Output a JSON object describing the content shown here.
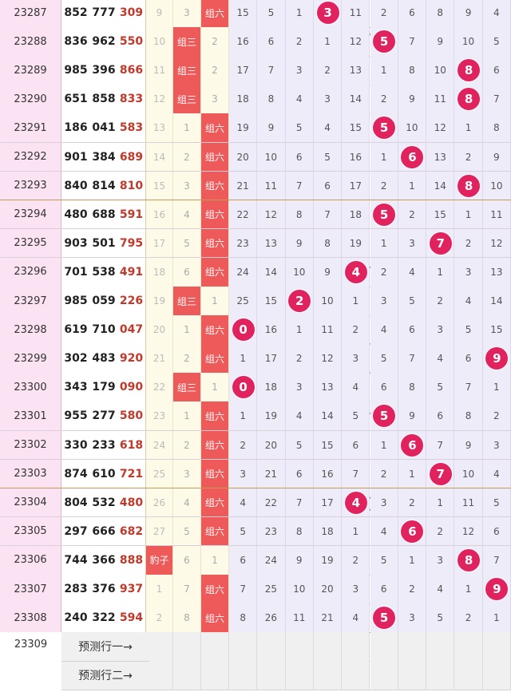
{
  "chart_data": {
    "type": "table",
    "columns": [
      "period",
      "draw_digits_1",
      "draw_digits_2",
      "sum_code",
      "group_baozi_omit",
      "group_zu3",
      "group_zu6",
      "d0",
      "d1",
      "d2",
      "d3",
      "d4",
      "d5",
      "d6",
      "d7",
      "d8",
      "d9"
    ],
    "rows": [
      {
        "period": "23287",
        "a": "852",
        "b": "777",
        "c": "309",
        "g1": "9",
        "g2": "3",
        "g3": "组六",
        "g3hl": true,
        "g2hl": false,
        "g1hl": false,
        "digits": [
          "15",
          "5",
          "1",
          "3",
          "11",
          "2",
          "6",
          "8",
          "9",
          "4"
        ],
        "hit": 3
      },
      {
        "period": "23288",
        "a": "836",
        "b": "962",
        "c": "550",
        "g1": "10",
        "g2": "组三",
        "g3": "2",
        "g3hl": false,
        "g2hl": true,
        "g1hl": false,
        "digits": [
          "16",
          "6",
          "2",
          "1",
          "12",
          "5",
          "7",
          "9",
          "10",
          "5"
        ],
        "hit": 5
      },
      {
        "period": "23289",
        "a": "985",
        "b": "396",
        "c": "866",
        "g1": "11",
        "g2": "组三",
        "g3": "2",
        "g3hl": false,
        "g2hl": true,
        "g1hl": false,
        "digits": [
          "17",
          "7",
          "3",
          "2",
          "13",
          "1",
          "8",
          "10",
          "8",
          "6"
        ],
        "hit": 8
      },
      {
        "period": "23290",
        "a": "651",
        "b": "858",
        "c": "833",
        "g1": "12",
        "g2": "组三",
        "g3": "3",
        "g3hl": false,
        "g2hl": true,
        "g1hl": false,
        "digits": [
          "18",
          "8",
          "4",
          "3",
          "14",
          "2",
          "9",
          "11",
          "8",
          "7"
        ],
        "hit": 8
      },
      {
        "period": "23291",
        "a": "186",
        "b": "041",
        "c": "583",
        "g1": "13",
        "g2": "1",
        "g3": "组六",
        "g3hl": true,
        "g2hl": false,
        "g1hl": false,
        "digits": [
          "19",
          "9",
          "5",
          "4",
          "15",
          "5",
          "10",
          "12",
          "1",
          "8"
        ],
        "hit": 5
      },
      {
        "period": "23292",
        "a": "901",
        "b": "384",
        "c": "689",
        "g1": "14",
        "g2": "2",
        "g3": "组六",
        "g3hl": true,
        "g2hl": false,
        "g1hl": false,
        "digits": [
          "20",
          "10",
          "6",
          "5",
          "16",
          "1",
          "6",
          "13",
          "2",
          "9"
        ],
        "hit": 6
      },
      {
        "period": "23293",
        "a": "840",
        "b": "814",
        "c": "810",
        "g1": "15",
        "g2": "3",
        "g3": "组六",
        "g3hl": true,
        "g2hl": false,
        "g1hl": false,
        "digits": [
          "21",
          "11",
          "7",
          "6",
          "17",
          "2",
          "1",
          "14",
          "8",
          "10"
        ],
        "hit": 8
      },
      {
        "period": "23294",
        "a": "480",
        "b": "688",
        "c": "591",
        "g1": "16",
        "g2": "4",
        "g3": "组六",
        "g3hl": true,
        "g2hl": false,
        "g1hl": false,
        "digits": [
          "22",
          "12",
          "8",
          "7",
          "18",
          "5",
          "2",
          "15",
          "1",
          "11"
        ],
        "hit": 5
      },
      {
        "period": "23295",
        "a": "903",
        "b": "501",
        "c": "795",
        "g1": "17",
        "g2": "5",
        "g3": "组六",
        "g3hl": true,
        "g2hl": false,
        "g1hl": false,
        "digits": [
          "23",
          "13",
          "9",
          "8",
          "19",
          "1",
          "3",
          "7",
          "2",
          "12"
        ],
        "hit": 7
      },
      {
        "period": "23296",
        "a": "701",
        "b": "538",
        "c": "491",
        "g1": "18",
        "g2": "6",
        "g3": "组六",
        "g3hl": true,
        "g2hl": false,
        "g1hl": false,
        "digits": [
          "24",
          "14",
          "10",
          "9",
          "4",
          "2",
          "4",
          "1",
          "3",
          "13"
        ],
        "hit": 4
      },
      {
        "period": "23297",
        "a": "985",
        "b": "059",
        "c": "226",
        "g1": "19",
        "g2": "组三",
        "g3": "1",
        "g3hl": false,
        "g2hl": true,
        "g1hl": false,
        "digits": [
          "25",
          "15",
          "2",
          "10",
          "1",
          "3",
          "5",
          "2",
          "4",
          "14"
        ],
        "hit": 2
      },
      {
        "period": "23298",
        "a": "619",
        "b": "710",
        "c": "047",
        "g1": "20",
        "g2": "1",
        "g3": "组六",
        "g3hl": true,
        "g2hl": false,
        "g1hl": false,
        "digits": [
          "0",
          "16",
          "1",
          "11",
          "2",
          "4",
          "6",
          "3",
          "5",
          "15"
        ],
        "hit": 0
      },
      {
        "period": "23299",
        "a": "302",
        "b": "483",
        "c": "920",
        "g1": "21",
        "g2": "2",
        "g3": "组六",
        "g3hl": true,
        "g2hl": false,
        "g1hl": false,
        "digits": [
          "1",
          "17",
          "2",
          "12",
          "3",
          "5",
          "7",
          "4",
          "6",
          "9"
        ],
        "hit": 9
      },
      {
        "period": "23300",
        "a": "343",
        "b": "179",
        "c": "090",
        "g1": "22",
        "g2": "组三",
        "g3": "1",
        "g3hl": false,
        "g2hl": true,
        "g1hl": false,
        "digits": [
          "0",
          "18",
          "3",
          "13",
          "4",
          "6",
          "8",
          "5",
          "7",
          "1"
        ],
        "hit": 0
      },
      {
        "period": "23301",
        "a": "955",
        "b": "277",
        "c": "580",
        "g1": "23",
        "g2": "1",
        "g3": "组六",
        "g3hl": true,
        "g2hl": false,
        "g1hl": false,
        "digits": [
          "1",
          "19",
          "4",
          "14",
          "5",
          "5",
          "9",
          "6",
          "8",
          "2"
        ],
        "hit": 5
      },
      {
        "period": "23302",
        "a": "330",
        "b": "233",
        "c": "618",
        "g1": "24",
        "g2": "2",
        "g3": "组六",
        "g3hl": true,
        "g2hl": false,
        "g1hl": false,
        "digits": [
          "2",
          "20",
          "5",
          "15",
          "6",
          "1",
          "6",
          "7",
          "9",
          "3"
        ],
        "hit": 6
      },
      {
        "period": "23303",
        "a": "874",
        "b": "610",
        "c": "721",
        "g1": "25",
        "g2": "3",
        "g3": "组六",
        "g3hl": true,
        "g2hl": false,
        "g1hl": false,
        "digits": [
          "3",
          "21",
          "6",
          "16",
          "7",
          "2",
          "1",
          "7",
          "10",
          "4"
        ],
        "hit": 7
      },
      {
        "period": "23304",
        "a": "804",
        "b": "532",
        "c": "480",
        "g1": "26",
        "g2": "4",
        "g3": "组六",
        "g3hl": true,
        "g2hl": false,
        "g1hl": false,
        "digits": [
          "4",
          "22",
          "7",
          "17",
          "4",
          "3",
          "2",
          "1",
          "11",
          "5"
        ],
        "hit": 4
      },
      {
        "period": "23305",
        "a": "297",
        "b": "666",
        "c": "682",
        "g1": "27",
        "g2": "5",
        "g3": "组六",
        "g3hl": true,
        "g2hl": false,
        "g1hl": false,
        "digits": [
          "5",
          "23",
          "8",
          "18",
          "1",
          "4",
          "6",
          "2",
          "12",
          "6"
        ],
        "hit": 6
      },
      {
        "period": "23306",
        "a": "744",
        "b": "366",
        "c": "888",
        "g1": "豹子",
        "g2": "6",
        "g3": "1",
        "g3hl": false,
        "g2hl": false,
        "g1hl": true,
        "digits": [
          "6",
          "24",
          "9",
          "19",
          "2",
          "5",
          "1",
          "3",
          "8",
          "7"
        ],
        "hit": 8
      },
      {
        "period": "23307",
        "a": "283",
        "b": "376",
        "c": "937",
        "g1": "1",
        "g2": "7",
        "g3": "组六",
        "g3hl": true,
        "g2hl": false,
        "g1hl": false,
        "digits": [
          "7",
          "25",
          "10",
          "20",
          "3",
          "6",
          "2",
          "4",
          "1",
          "9"
        ],
        "hit": 9
      },
      {
        "period": "23308",
        "a": "240",
        "b": "322",
        "c": "594",
        "g1": "2",
        "g2": "8",
        "g3": "组六",
        "g3hl": true,
        "g2hl": false,
        "g1hl": false,
        "digits": [
          "8",
          "26",
          "11",
          "21",
          "4",
          "5",
          "3",
          "5",
          "2",
          "1"
        ],
        "hit": 5
      }
    ],
    "prediction": {
      "period": "23309",
      "row1_label": "预测行一→",
      "row2_label": "预测行二→"
    }
  },
  "colors": {
    "ball": "#e0225f",
    "group_highlight": "#ee5a5a",
    "period_bg": "#fbe3f4",
    "digit_bg": "#efecf9",
    "group_bg": "#fdfbe8",
    "sum_text": "#c0392b",
    "line": "#8a8aa0"
  }
}
